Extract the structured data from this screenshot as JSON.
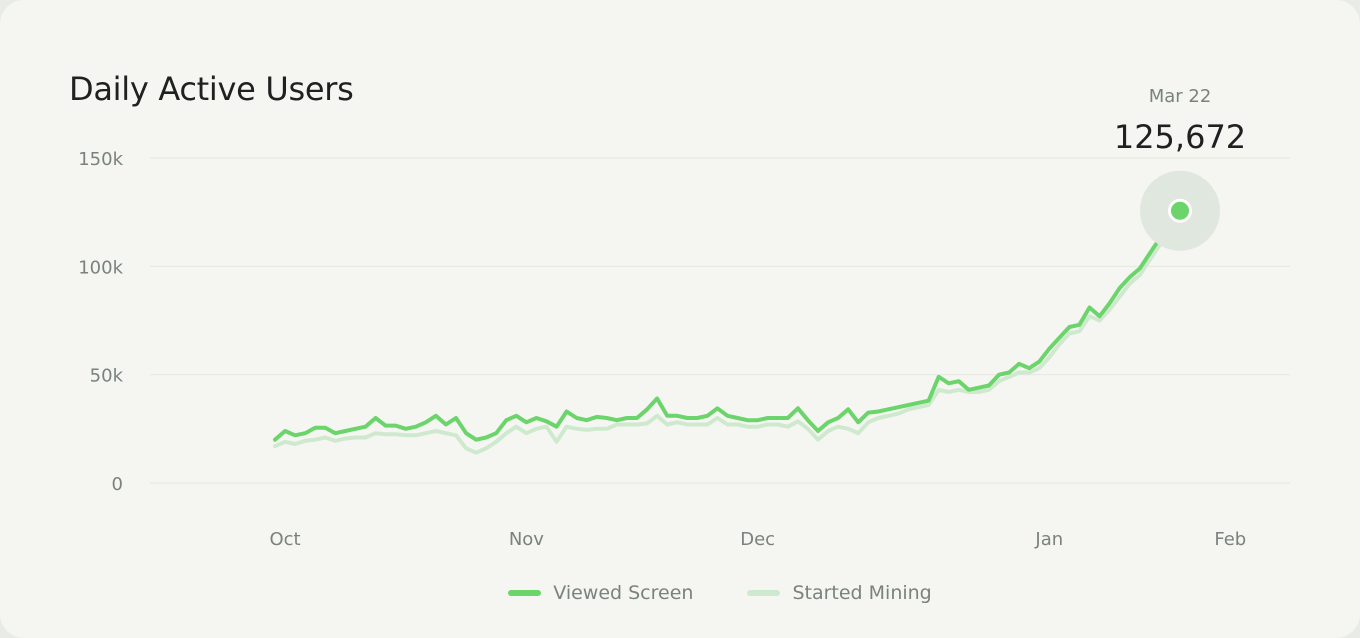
{
  "chart_data": {
    "type": "line",
    "title": "Daily Active Users",
    "ylim": [
      0,
      150000
    ],
    "y_ticks": [
      {
        "value": 0,
        "label": "0"
      },
      {
        "value": 50000,
        "label": "50k"
      },
      {
        "value": 100000,
        "label": "100k"
      },
      {
        "value": 150000,
        "label": "150k"
      }
    ],
    "x_ticks": [
      {
        "index": 1,
        "label": "Oct"
      },
      {
        "index": 25,
        "label": "Nov"
      },
      {
        "index": 48,
        "label": "Dec"
      },
      {
        "index": 77,
        "label": "Jan"
      },
      {
        "index": 95,
        "label": "Feb"
      }
    ],
    "grid": true,
    "legend": "bottom",
    "colors": {
      "viewed_screen": "#6bd46b",
      "started_mining": "#cfe9cf",
      "highlight_halo": "#dfe7de",
      "gridline": "#e6e9e3"
    },
    "series": [
      {
        "name": "Viewed Screen",
        "values": [
          20000,
          24000,
          22000,
          23000,
          25500,
          25500,
          23000,
          24000,
          25000,
          26000,
          30000,
          26500,
          26500,
          25000,
          26000,
          28000,
          31000,
          27000,
          30000,
          23000,
          20000,
          21000,
          23000,
          29000,
          31000,
          28000,
          30000,
          28500,
          26000,
          33000,
          30000,
          29000,
          30500,
          30000,
          29000,
          30000,
          30000,
          34000,
          39000,
          31000,
          31000,
          30000,
          30000,
          31000,
          34500,
          31000,
          30000,
          29000,
          29000,
          30000,
          30000,
          30000,
          34500,
          29000,
          24000,
          28000,
          30000,
          34000,
          28000,
          32500,
          33000,
          34000,
          35000,
          36000,
          37000,
          38000,
          49000,
          46000,
          47000,
          43000,
          44000,
          45000,
          50000,
          51000,
          55000,
          53000,
          56000,
          62000,
          67000,
          72000,
          73000,
          81000,
          77000,
          83000,
          90000,
          95000,
          99000,
          106000,
          113000,
          120000,
          125672
        ],
        "highlight": {
          "date": "Mar 22",
          "value_label": "125,672",
          "value": 125672
        }
      },
      {
        "name": "Started Mining",
        "values": [
          17000,
          19000,
          18000,
          19500,
          20000,
          21000,
          19500,
          20500,
          21000,
          21000,
          23000,
          22500,
          22500,
          22000,
          22000,
          23000,
          24000,
          23000,
          22000,
          16000,
          14000,
          16000,
          19000,
          23000,
          26000,
          23000,
          25000,
          26000,
          19000,
          26000,
          25000,
          24500,
          25000,
          25000,
          27000,
          27000,
          27000,
          27500,
          31000,
          27000,
          28000,
          27000,
          27000,
          27000,
          30000,
          27000,
          27000,
          26000,
          26000,
          27000,
          27000,
          26000,
          28500,
          25000,
          20000,
          24000,
          26000,
          25000,
          23000,
          28000,
          30000,
          31000,
          32000,
          34000,
          35000,
          36000,
          43000,
          42000,
          43000,
          42000,
          42000,
          43000,
          47000,
          49000,
          51000,
          51000,
          53000,
          58000,
          64000,
          69000,
          70000,
          77000,
          75000,
          80000,
          86000,
          92000,
          96000,
          103000,
          110000,
          117000,
          122000
        ]
      }
    ]
  }
}
